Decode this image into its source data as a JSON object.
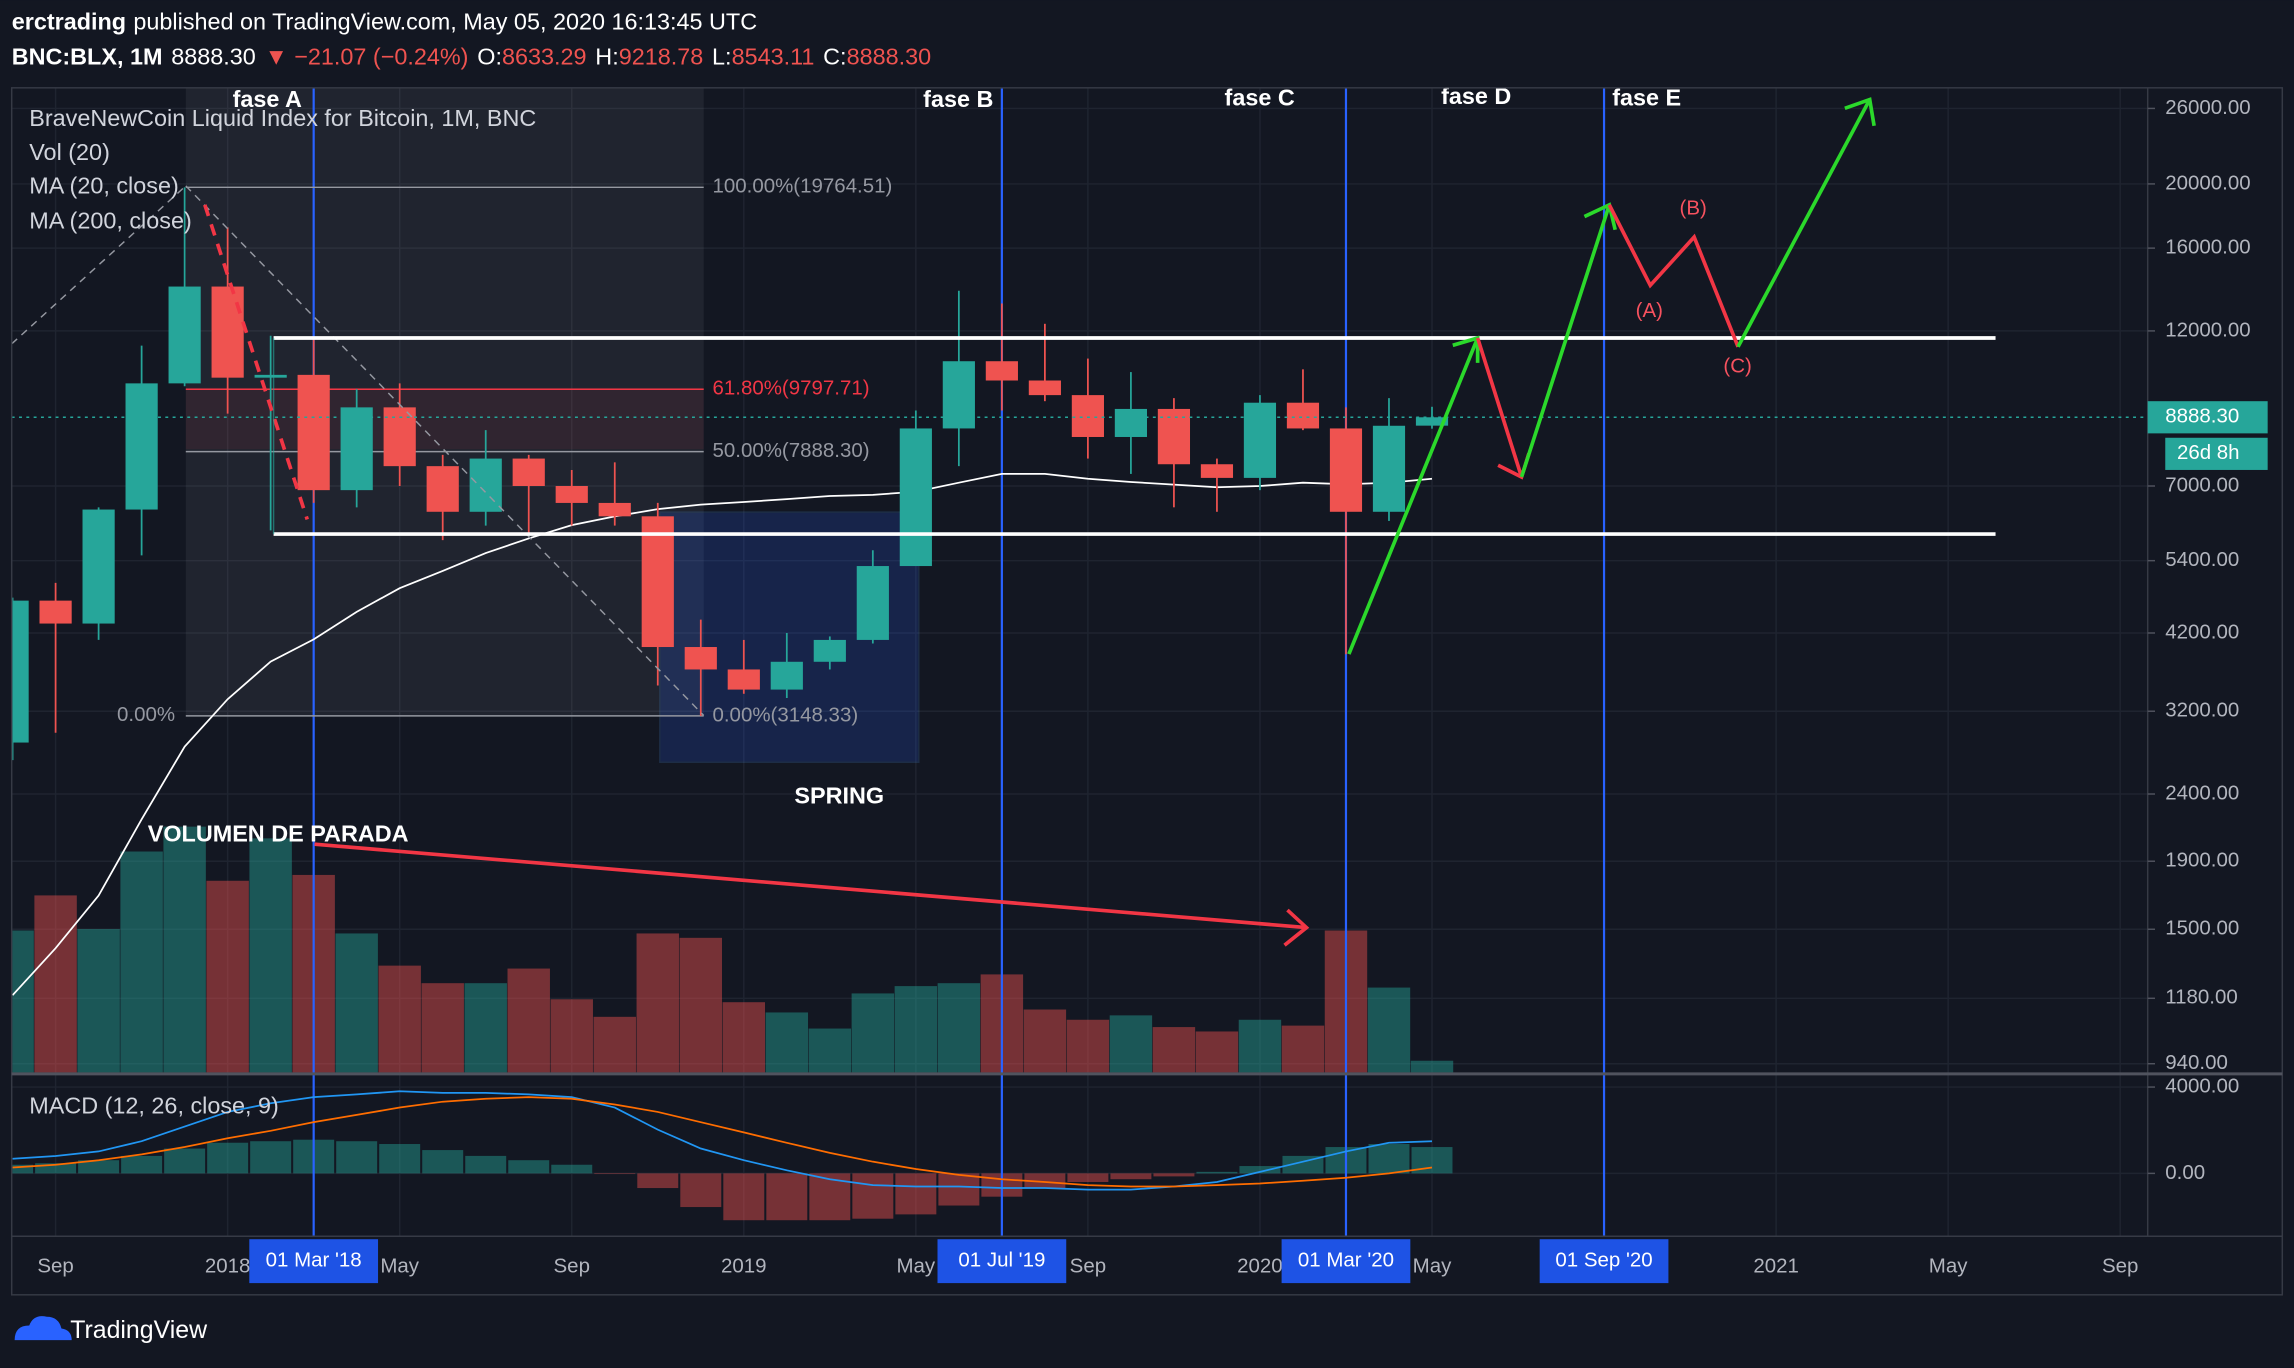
{
  "header": {
    "user": "erctrading",
    "published": "published on TradingView.com, May 05, 2020 16:13:45 UTC",
    "symbol": "BNC:BLX, 1M",
    "last": "8888.30",
    "change": "▼ −21.07 (−0.24%)",
    "ohlc": [
      {
        "label": "O:",
        "value": "8633.29"
      },
      {
        "label": "H:",
        "value": "9218.78"
      },
      {
        "label": "L:",
        "value": "8543.11"
      },
      {
        "label": "C:",
        "value": "8888.30"
      }
    ]
  },
  "footer": {
    "brand": "TradingView"
  },
  "chart_data": {
    "type": "candlestick",
    "title": "BraveNewCoin Liquid Index for Bitcoin, 1M, BNC",
    "indicators": [
      "Vol (20)",
      "MA (20, close)",
      "MA (200, close)"
    ],
    "log_scale": true,
    "grid": true,
    "up_color": "#26a69a",
    "down_color": "#ef5350",
    "ma_color": "#ffffff",
    "categories": [
      null,
      "Sep",
      null,
      null,
      null,
      "2018",
      null,
      "01 Mar '18",
      null,
      "May",
      null,
      null,
      null,
      "Sep",
      null,
      null,
      null,
      "2019",
      null,
      null,
      null,
      "May",
      null,
      "01 Jul '19",
      null,
      "Sep",
      null,
      null,
      null,
      "2020",
      null,
      "01 Mar '20",
      null,
      "May",
      null,
      null,
      null,
      "01 Sep '20",
      null,
      null,
      null,
      "2021",
      null,
      null,
      null,
      "May",
      null,
      null,
      null,
      "Sep"
    ],
    "open": [
      2870,
      4700,
      4340,
      6450,
      10000,
      14000,
      10200,
      10300,
      6900,
      9200,
      7500,
      6400,
      7700,
      7000,
      6600,
      6300,
      4000,
      3700,
      3450,
      3800,
      4100,
      5300,
      8550,
      10800,
      10100,
      9600,
      8300,
      9150,
      7550,
      7200,
      9350,
      8550,
      6400,
      8633.29,
      null,
      null,
      null,
      null,
      null,
      null,
      null,
      null,
      null,
      null,
      null,
      null,
      null,
      null,
      null,
      null
    ],
    "high": [
      4750,
      5000,
      6500,
      11400,
      19764.51,
      17200,
      11800,
      11700,
      9800,
      10000,
      7800,
      8500,
      7800,
      7400,
      7600,
      6600,
      4400,
      4100,
      4200,
      4150,
      5600,
      9100,
      13800,
      13200,
      12300,
      10900,
      10400,
      9500,
      7700,
      9600,
      10500,
      9200,
      9500,
      9218.78,
      null,
      null,
      null,
      null,
      null,
      null,
      null,
      null,
      null,
      null,
      null,
      null,
      null,
      null,
      null,
      null
    ],
    "low": [
      2700,
      2970,
      4100,
      5500,
      9900,
      9000,
      6000,
      6600,
      6500,
      7000,
      5800,
      6100,
      5900,
      6100,
      6100,
      3500,
      3148.33,
      3400,
      3350,
      3700,
      4050,
      5300,
      7500,
      9100,
      9400,
      7700,
      7300,
      6500,
      6400,
      6900,
      8500,
      3900,
      6200,
      8543.11,
      null,
      null,
      null,
      null,
      null,
      null,
      null,
      null,
      null,
      null,
      null,
      null,
      null,
      null,
      null,
      null
    ],
    "close": [
      4700,
      4340,
      6450,
      10000,
      14000,
      10200,
      10300,
      6900,
      9200,
      7500,
      6400,
      7700,
      7000,
      6600,
      6300,
      4000,
      3700,
      3450,
      3800,
      4100,
      5300,
      8550,
      10800,
      10100,
      9600,
      8300,
      9150,
      7550,
      7200,
      9350,
      8550,
      6400,
      8630,
      8888.3,
      null,
      null,
      null,
      null,
      null,
      null,
      null,
      null,
      null,
      null,
      null,
      null,
      null,
      null,
      null,
      null
    ],
    "volume": [
      97,
      121,
      98,
      151,
      168,
      131,
      160,
      135,
      95,
      73,
      61,
      61,
      71,
      50,
      38,
      95,
      92,
      48,
      41,
      30,
      54,
      59,
      61,
      67,
      43,
      36,
      39,
      31,
      28,
      36,
      32,
      97,
      58,
      8,
      null,
      null,
      null,
      null,
      null,
      null,
      null,
      null,
      null,
      null,
      null,
      null,
      null,
      null,
      null,
      null
    ],
    "ma20": [
      1193,
      1404,
      1686,
      2198,
      2830,
      3337,
      3802,
      4108,
      4520,
      4907,
      5210,
      5545,
      5834,
      6110,
      6300,
      6460,
      6560,
      6620,
      6690,
      6760,
      6790,
      6860,
      7080,
      7300,
      7300,
      7180,
      7100,
      7036,
      6970,
      7000,
      7080,
      7040,
      7080,
      7180,
      null,
      null,
      null,
      null,
      null,
      null,
      null,
      null,
      null,
      null,
      null,
      null,
      null,
      null,
      null,
      null
    ],
    "ylim": [
      912,
      27930
    ],
    "yticks": [
      {
        "value": 26000,
        "label": "26000.00"
      },
      {
        "value": 20000,
        "label": "20000.00"
      },
      {
        "value": 16000,
        "label": "16000.00"
      },
      {
        "value": 12000,
        "label": "12000.00"
      },
      {
        "value": 7000,
        "label": "7000.00"
      },
      {
        "value": 5400,
        "label": "5400.00"
      },
      {
        "value": 4200,
        "label": "4200.00"
      },
      {
        "value": 3200,
        "label": "3200.00"
      },
      {
        "value": 2400,
        "label": "2400.00"
      },
      {
        "value": 1900,
        "label": "1900.00"
      },
      {
        "value": 1500,
        "label": "1500.00"
      },
      {
        "value": 1180,
        "label": "1180.00"
      },
      {
        "value": 940,
        "label": "940.00"
      }
    ],
    "last_price": {
      "value": 8888.3,
      "label": "8888.30",
      "countdown": "26d 8h"
    },
    "vertical_lines": [
      7,
      23,
      31,
      37
    ],
    "fib_levels": [
      {
        "value": 19764.51,
        "label": "100.00%(19764.51)",
        "color": "#9598a1"
      },
      {
        "value": 9797.71,
        "label": "61.80%(9797.71)",
        "color": "#f23645"
      },
      {
        "value": 7888.3,
        "label": "50.00%(7888.30)",
        "color": "#9598a1"
      },
      {
        "value": 3148.33,
        "label": "0.00%(3148.33)",
        "color": "#9598a1"
      }
    ],
    "annotations": [
      "fase A",
      "fase B",
      "fase C",
      "fase D",
      "fase E",
      "VOLUMEN DE PARADA",
      "SPRING",
      "(A)",
      "(B)",
      "(C)",
      "0.00%"
    ],
    "macd": {
      "title": "MACD (12, 26, close, 9)",
      "ylim": [
        -2915,
        4542
      ],
      "yticks": [
        {
          "value": 4000,
          "label": "4000.00"
        },
        {
          "value": 0,
          "label": "0.00"
        }
      ],
      "macd_color": "#2196f3",
      "signal_color": "#ff6d00",
      "histogram": [
        400,
        470,
        610,
        810,
        1150,
        1420,
        1490,
        1560,
        1490,
        1360,
        1080,
        810,
        610,
        400,
        -30,
        -680,
        -1560,
        -2170,
        -2170,
        -2170,
        -2100,
        -1900,
        -1490,
        -1080,
        -680,
        -400,
        -270,
        -140,
        70,
        340,
        810,
        1220,
        1360,
        1220,
        null,
        null,
        null,
        null,
        null,
        null,
        null,
        null,
        null,
        null,
        null,
        null,
        null,
        null,
        null,
        null
      ],
      "macd": [
        680,
        810,
        1020,
        1490,
        2170,
        2850,
        3250,
        3530,
        3660,
        3800,
        3730,
        3730,
        3660,
        3530,
        3050,
        2030,
        1150,
        610,
        140,
        -270,
        -540,
        -610,
        -610,
        -680,
        -680,
        -750,
        -750,
        -610,
        -400,
        70,
        540,
        1020,
        1420,
        1490,
        null,
        null,
        null,
        null,
        null,
        null,
        null,
        null,
        null,
        null,
        null,
        null,
        null,
        null,
        null,
        null
      ],
      "signal": [
        270,
        400,
        610,
        880,
        1220,
        1630,
        1970,
        2370,
        2710,
        3050,
        3320,
        3460,
        3530,
        3460,
        3190,
        2850,
        2370,
        1900,
        1420,
        950,
        540,
        200,
        -70,
        -270,
        -400,
        -540,
        -610,
        -610,
        -540,
        -470,
        -340,
        -200,
        0,
        270,
        null,
        null,
        null,
        null,
        null,
        null,
        null,
        null,
        null,
        null,
        null,
        null,
        null,
        null,
        null,
        null
      ]
    }
  }
}
